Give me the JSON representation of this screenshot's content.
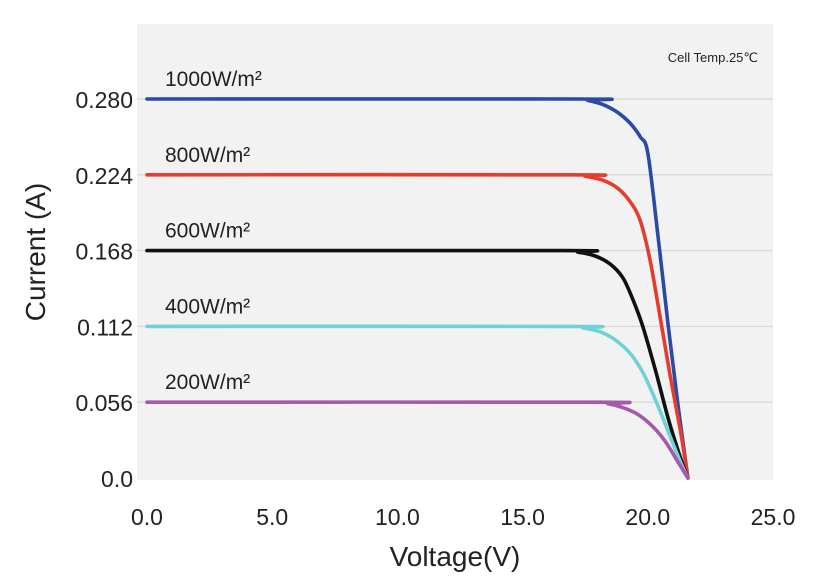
{
  "chart_data": {
    "type": "line",
    "title": "",
    "xlabel": "Voltage(V)",
    "ylabel": "Current (A)",
    "annotation": "Cell Temp.25℃",
    "xlim": [
      0,
      25
    ],
    "ylim": [
      0,
      0.28
    ],
    "x_ticks": [
      "0.0",
      "5.0",
      "10.0",
      "15.0",
      "20.0",
      "25.0"
    ],
    "x_tick_values": [
      0,
      5,
      10,
      15,
      20,
      25
    ],
    "y_ticks": [
      "0.0",
      "0.056",
      "0.112",
      "0.168",
      "0.224",
      "0.280"
    ],
    "y_tick_values": [
      0,
      0.056,
      0.112,
      0.168,
      0.224,
      0.28
    ],
    "grid": "horizontal",
    "series": [
      {
        "name": "1000W/m²",
        "color": "#2b4aa6",
        "points": [
          [
            0,
            0.28
          ],
          [
            17.2,
            0.28
          ],
          [
            17.6,
            0.279
          ],
          [
            18.2,
            0.276
          ],
          [
            18.8,
            0.27
          ],
          [
            19.3,
            0.262
          ],
          [
            19.7,
            0.252
          ],
          [
            20.0,
            0.24
          ],
          [
            20.4,
            0.18
          ],
          [
            20.8,
            0.115
          ],
          [
            21.2,
            0.055
          ],
          [
            21.6,
            0.0
          ]
        ]
      },
      {
        "name": "800W/m²",
        "color": "#e43d2f",
        "points": [
          [
            0,
            0.224
          ],
          [
            16.9,
            0.224
          ],
          [
            17.5,
            0.223
          ],
          [
            18.2,
            0.22
          ],
          [
            18.8,
            0.214
          ],
          [
            19.3,
            0.204
          ],
          [
            19.7,
            0.19
          ],
          [
            20.1,
            0.16
          ],
          [
            20.5,
            0.118
          ],
          [
            20.9,
            0.075
          ],
          [
            21.3,
            0.035
          ],
          [
            21.6,
            0.0
          ]
        ]
      },
      {
        "name": "600W/m²",
        "color": "#111111",
        "points": [
          [
            0,
            0.168
          ],
          [
            16.6,
            0.168
          ],
          [
            17.2,
            0.167
          ],
          [
            17.9,
            0.164
          ],
          [
            18.5,
            0.158
          ],
          [
            19.0,
            0.148
          ],
          [
            19.4,
            0.132
          ],
          [
            19.8,
            0.112
          ],
          [
            20.3,
            0.08
          ],
          [
            20.8,
            0.045
          ],
          [
            21.3,
            0.015
          ],
          [
            21.6,
            0.0
          ]
        ]
      },
      {
        "name": "400W/m²",
        "color": "#6fd2d8",
        "points": [
          [
            0,
            0.112
          ],
          [
            16.8,
            0.112
          ],
          [
            17.4,
            0.111
          ],
          [
            18.1,
            0.108
          ],
          [
            18.7,
            0.102
          ],
          [
            19.3,
            0.092
          ],
          [
            19.8,
            0.078
          ],
          [
            20.3,
            0.058
          ],
          [
            20.8,
            0.035
          ],
          [
            21.3,
            0.012
          ],
          [
            21.6,
            0.0
          ]
        ]
      },
      {
        "name": "200W/m²",
        "color": "#a659aa",
        "points": [
          [
            0,
            0.056
          ],
          [
            17.8,
            0.056
          ],
          [
            18.4,
            0.055
          ],
          [
            19.0,
            0.052
          ],
          [
            19.6,
            0.047
          ],
          [
            20.2,
            0.038
          ],
          [
            20.7,
            0.027
          ],
          [
            21.2,
            0.012
          ],
          [
            21.6,
            0.0
          ]
        ]
      }
    ]
  }
}
